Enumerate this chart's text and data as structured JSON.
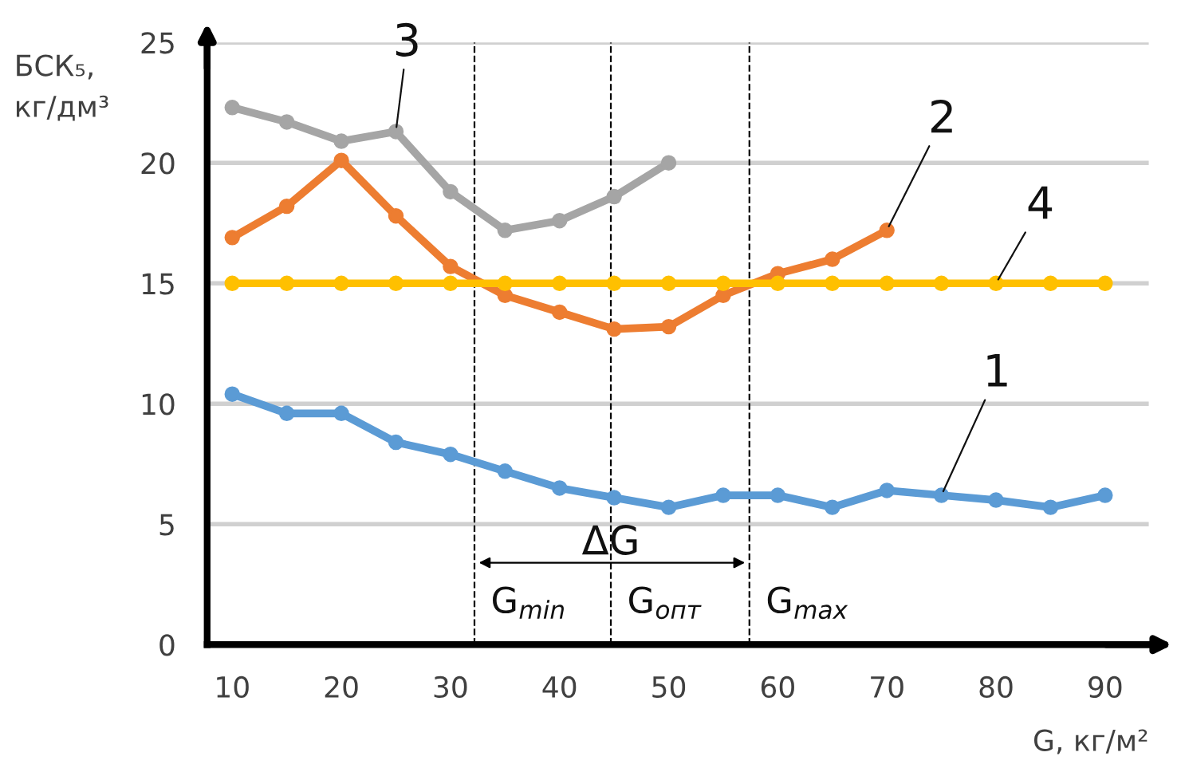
{
  "chart_data": {
    "type": "line",
    "ylabel": "БСК₅,\nкг/дм³",
    "xlabel": "G, кг/м²",
    "x": [
      10,
      15,
      20,
      25,
      30,
      35,
      40,
      45,
      50,
      55,
      60,
      65,
      70,
      75,
      80,
      85,
      90
    ],
    "xlim": [
      7.7,
      94
    ],
    "xticks": [
      10,
      20,
      30,
      40,
      50,
      60,
      70,
      80,
      90
    ],
    "ylim": [
      0,
      25
    ],
    "yticks": [
      0,
      5,
      10,
      15,
      20,
      25
    ],
    "grid": "y",
    "marker": "circle",
    "line_style": "solid",
    "series": [
      {
        "name": "1",
        "color": "#5b9bd5",
        "values": [
          10.4,
          9.6,
          9.6,
          8.4,
          7.9,
          7.2,
          6.5,
          6.1,
          5.7,
          6.2,
          6.2,
          5.7,
          6.4,
          6.2,
          6.0,
          5.7,
          6.2
        ]
      },
      {
        "name": "2",
        "color": "#ed7d31",
        "values": [
          16.9,
          18.2,
          20.1,
          17.8,
          15.7,
          14.5,
          13.8,
          13.1,
          13.2,
          14.5,
          15.4,
          16.0,
          17.2,
          null,
          null,
          null,
          null
        ]
      },
      {
        "name": "3",
        "color": "#a5a5a5",
        "values": [
          22.3,
          21.7,
          20.9,
          21.3,
          18.8,
          17.2,
          17.6,
          18.6,
          20.0,
          null,
          null,
          null,
          null,
          null,
          null,
          null,
          null
        ]
      },
      {
        "name": "4",
        "color": "#ffc000",
        "values": [
          15,
          15,
          15,
          15,
          15,
          15,
          15,
          15,
          15,
          15,
          15,
          15,
          15,
          15,
          15,
          15,
          15
        ]
      }
    ],
    "ref_lines": [
      {
        "axis": "x",
        "value": 32.2,
        "label": "G$_{min}$",
        "color": "#000000",
        "line_style": "dashed"
      },
      {
        "axis": "x",
        "value": 44.7,
        "label": "G$_{опт}$",
        "color": "#000000",
        "line_style": "dashed"
      },
      {
        "axis": "x",
        "value": 57.4,
        "label": "G$_{max}$",
        "color": "#000000",
        "line_style": "dashed"
      }
    ],
    "annotations": [
      {
        "text": "ΔG",
        "x": 44.7,
        "y": 3.4
      }
    ]
  }
}
